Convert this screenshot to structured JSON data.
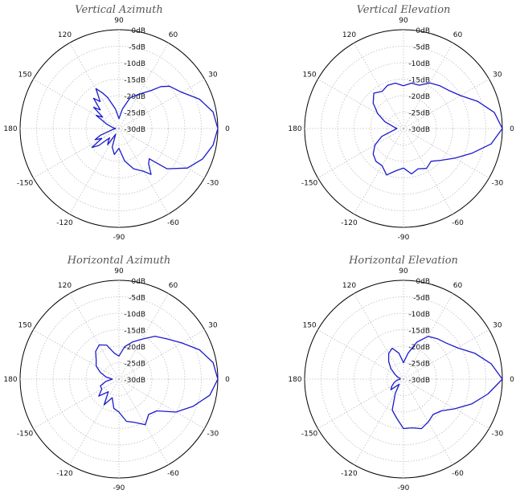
{
  "chart_data": [
    {
      "type": "polar",
      "title": "Vertical Azimuth",
      "r_ticks": [
        "0dB",
        "-5dB",
        "-10dB",
        "-15dB",
        "-20dB",
        "-25dB",
        "-30dB"
      ],
      "rlim": [
        -30,
        0
      ],
      "angle_ticks": [
        "0",
        "30",
        "60",
        "90",
        "120",
        "150",
        "180",
        "-150",
        "-120",
        "-90",
        "-60",
        "-30"
      ],
      "grid": true,
      "series": [
        {
          "color": "#1a1acc",
          "theta": [
            0,
            10,
            20,
            30,
            40,
            45,
            50,
            60,
            70,
            80,
            90,
            100,
            110,
            115,
            120,
            125,
            130,
            135,
            140,
            145,
            150,
            160,
            170,
            180,
            190,
            200,
            205,
            210,
            215,
            220,
            225,
            230,
            235,
            240,
            250,
            260,
            270,
            280,
            290,
            300,
            305,
            310,
            315,
            320,
            330,
            340,
            350,
            360
          ],
          "r": [
            0,
            -1,
            -4,
            -8,
            -10,
            -12,
            -15,
            -18,
            -20,
            -24,
            -27,
            -24,
            -20,
            -18,
            -16,
            -20,
            -18,
            -22,
            -20,
            -24,
            -22,
            -26,
            -28,
            -29,
            -28,
            -24,
            -22,
            -24,
            -20,
            -22,
            -26,
            -25,
            -24,
            -28,
            -24,
            -22,
            -24,
            -20,
            -17,
            -15,
            -13,
            -16,
            -17,
            -11,
            -6,
            -3,
            -1,
            0
          ]
        }
      ]
    },
    {
      "type": "polar",
      "title": "Vertical Elevation",
      "r_ticks": [
        "0dB",
        "-5dB",
        "-10dB",
        "-15dB",
        "-20dB",
        "-25dB",
        "-30dB"
      ],
      "rlim": [
        -30,
        0
      ],
      "angle_ticks": [
        "0",
        "30",
        "60",
        "90",
        "120",
        "150",
        "180",
        "-150",
        "-120",
        "-90",
        "-60",
        "-30"
      ],
      "grid": true,
      "series": [
        {
          "color": "#1a1acc",
          "theta": [
            0,
            10,
            20,
            30,
            40,
            50,
            60,
            70,
            80,
            90,
            100,
            110,
            120,
            130,
            140,
            150,
            160,
            170,
            180,
            190,
            200,
            210,
            220,
            230,
            240,
            250,
            260,
            270,
            280,
            290,
            300,
            310,
            320,
            330,
            340,
            350,
            360
          ],
          "r": [
            0,
            -2,
            -6,
            -10,
            -12,
            -13,
            -14,
            -16,
            -16,
            -17,
            -16,
            -16,
            -17,
            -16,
            -18,
            -21,
            -24,
            -27,
            -28,
            -27,
            -23,
            -20,
            -18,
            -17,
            -17,
            -15,
            -17,
            -18,
            -16,
            -17,
            -16,
            -17,
            -15,
            -12,
            -8,
            -3,
            0
          ]
        }
      ]
    },
    {
      "type": "polar",
      "title": "Horizontal Azimuth",
      "r_ticks": [
        "0dB",
        "-5dB",
        "-10dB",
        "-15dB",
        "-20dB",
        "-25dB",
        "-30dB"
      ],
      "rlim": [
        -30,
        0
      ],
      "angle_ticks": [
        "0",
        "30",
        "60",
        "90",
        "120",
        "150",
        "180",
        "-150",
        "-120",
        "-90",
        "-60",
        "-30"
      ],
      "grid": true,
      "series": [
        {
          "color": "#1a1acc",
          "theta": [
            0,
            10,
            20,
            30,
            40,
            50,
            60,
            70,
            80,
            90,
            100,
            110,
            120,
            130,
            140,
            150,
            160,
            170,
            180,
            190,
            200,
            210,
            220,
            230,
            240,
            250,
            260,
            270,
            280,
            290,
            300,
            310,
            320,
            330,
            340,
            350,
            360
          ],
          "r": [
            0,
            -1,
            -4,
            -8,
            -11,
            -13,
            -16,
            -18,
            -20,
            -23,
            -22,
            -19,
            -18,
            -19,
            -21,
            -22,
            -24,
            -26,
            -28,
            -26,
            -24,
            -24,
            -22,
            -25,
            -21,
            -24,
            -21,
            -20,
            -17,
            -16,
            -14,
            -16,
            -15,
            -10,
            -6,
            -2,
            0
          ]
        }
      ]
    },
    {
      "type": "polar",
      "title": "Horizontal Elevation",
      "r_ticks": [
        "0dB",
        "-5dB",
        "-10dB",
        "-15dB",
        "-20dB",
        "-25dB",
        "-30dB"
      ],
      "rlim": [
        -30,
        0
      ],
      "angle_ticks": [
        "0",
        "30",
        "60",
        "90",
        "120",
        "150",
        "180",
        "-150",
        "-120",
        "-90",
        "-60",
        "-30"
      ],
      "grid": true,
      "series": [
        {
          "color": "#1a1acc",
          "theta": [
            0,
            10,
            20,
            30,
            40,
            50,
            60,
            70,
            80,
            90,
            100,
            110,
            120,
            130,
            140,
            150,
            160,
            170,
            180,
            190,
            200,
            210,
            220,
            230,
            240,
            250,
            260,
            270,
            280,
            290,
            300,
            310,
            320,
            330,
            340,
            350,
            360
          ],
          "r": [
            0,
            -3,
            -7,
            -11,
            -13,
            -14,
            -15,
            -18,
            -22,
            -25,
            -22,
            -20,
            -21,
            -23,
            -25,
            -27,
            -28,
            -29,
            -29,
            -28,
            -27,
            -26,
            -25,
            -28,
            -25,
            -20,
            -18,
            -15,
            -15,
            -14,
            -15,
            -16,
            -15,
            -12,
            -8,
            -4,
            0
          ]
        }
      ]
    }
  ]
}
